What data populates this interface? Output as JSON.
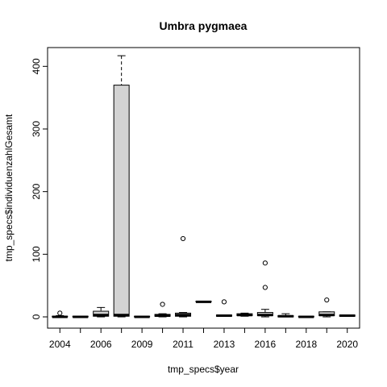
{
  "chart_data": {
    "type": "boxplot",
    "title": "Umbra pygmaea",
    "xlabel": "tmp_specs$year",
    "ylabel": "tmp_specs$individuenzahlGesamt",
    "ylim": [
      -18,
      430
    ],
    "yticks": [
      0,
      100,
      200,
      300,
      400
    ],
    "categories": [
      "2004",
      "2005",
      "2006",
      "2007",
      "2009",
      "2010",
      "2011",
      "2012",
      "2013",
      "2015",
      "2016",
      "2017",
      "2018",
      "2019",
      "2020"
    ],
    "x_tick_labels": [
      "2004",
      "2006",
      "2009",
      "2011",
      "2013",
      "2016",
      "2018",
      "2020"
    ],
    "box_fill": "#d3d3d3",
    "boxes": [
      {
        "year": "2004",
        "lower": 0,
        "q1": 0,
        "median": 0,
        "q3": 1,
        "upper": 2,
        "outliers": [
          6
        ]
      },
      {
        "year": "2005",
        "lower": 0,
        "q1": 0,
        "median": 0,
        "q3": 1,
        "upper": 1,
        "outliers": []
      },
      {
        "year": "2006",
        "lower": 0,
        "q1": 1,
        "median": 3,
        "q3": 9,
        "upper": 15,
        "outliers": []
      },
      {
        "year": "2007",
        "lower": 0,
        "q1": 1,
        "median": 3,
        "q3": 370,
        "upper": 417,
        "outliers": []
      },
      {
        "year": "2009",
        "lower": 0,
        "q1": 0,
        "median": 0,
        "q3": 1,
        "upper": 1,
        "outliers": []
      },
      {
        "year": "2010",
        "lower": 0,
        "q1": 1,
        "median": 2,
        "q3": 4,
        "upper": 5,
        "outliers": [
          20
        ]
      },
      {
        "year": "2011",
        "lower": 0,
        "q1": 1,
        "median": 3,
        "q3": 6,
        "upper": 7,
        "outliers": [
          125
        ]
      },
      {
        "year": "2012",
        "lower": 24,
        "q1": 24,
        "median": 24,
        "q3": 25,
        "upper": 25,
        "outliers": []
      },
      {
        "year": "2013",
        "lower": 1,
        "q1": 1,
        "median": 2,
        "q3": 3,
        "upper": 3,
        "outliers": [
          24
        ]
      },
      {
        "year": "2015",
        "lower": 1,
        "q1": 2,
        "median": 3,
        "q3": 5,
        "upper": 6,
        "outliers": []
      },
      {
        "year": "2016",
        "lower": 0,
        "q1": 2,
        "median": 3,
        "q3": 7,
        "upper": 12,
        "outliers": [
          47,
          86
        ]
      },
      {
        "year": "2017",
        "lower": 0,
        "q1": 0,
        "median": 1,
        "q3": 2,
        "upper": 5,
        "outliers": []
      },
      {
        "year": "2018",
        "lower": 0,
        "q1": 0,
        "median": 0,
        "q3": 1,
        "upper": 1,
        "outliers": []
      },
      {
        "year": "2019",
        "lower": 0,
        "q1": 2,
        "median": 3,
        "q3": 8,
        "upper": 8,
        "outliers": [
          27
        ]
      },
      {
        "year": "2020",
        "lower": 1,
        "q1": 1,
        "median": 2,
        "q3": 3,
        "upper": 3,
        "outliers": []
      }
    ]
  }
}
